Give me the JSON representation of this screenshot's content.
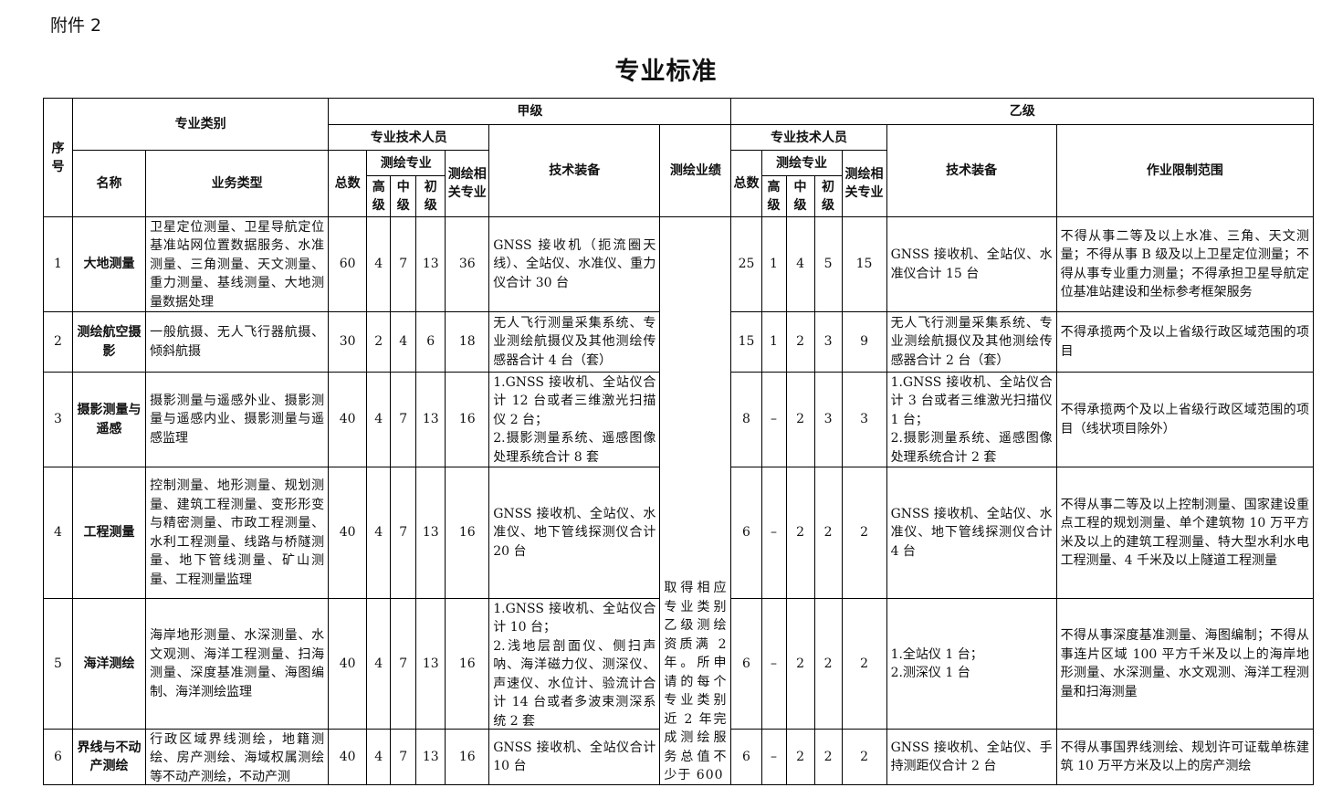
{
  "attachment": "附件 2",
  "title": "专业标准",
  "headers": {
    "seq": "序号",
    "category": "专业类别",
    "name": "名称",
    "business": "业务类型",
    "gradeA": "甲级",
    "gradeB": "乙级",
    "staff": "专业技术人员",
    "total": "总数",
    "surveying": "测绘专业",
    "senior": "高级",
    "middle": "中级",
    "junior": "初级",
    "related": "测绘相关专业",
    "equipment": "技术装备",
    "performance": "测绘业绩",
    "scope": "作业限制范围"
  },
  "performance": "取得相应专业类别乙级测绘资质满 2 年。所申请的每个专业类别近 2 年完成测绘服务总值不少于 600",
  "rows": [
    {
      "seq": "1",
      "name": "大地测量",
      "business": "卫星定位测量、卫星导航定位基准站网位置数据服务、水准测量、三角测量、天文测量、重力测量、基线测量、大地测量数据处理",
      "a_total": "60",
      "a_high": "4",
      "a_mid": "7",
      "a_low": "13",
      "a_rel": "36",
      "a_equip": "GNSS 接收机（扼流圈天线）、全站仪、水准仪、重力仪合计 30 台",
      "b_total": "25",
      "b_high": "1",
      "b_mid": "4",
      "b_low": "5",
      "b_rel": "15",
      "b_equip": "GNSS 接收机、全站仪、水准仪合计 15 台",
      "scope": "不得从事二等及以上水准、三角、天文测量；不得从事 B 级及以上卫星定位测量；不得从事专业重力测量；不得承担卫星导航定位基准站建设和坐标参考框架服务"
    },
    {
      "seq": "2",
      "name": "测绘航空摄影",
      "business": "一般航摄、无人飞行器航摄、倾斜航摄",
      "a_total": "30",
      "a_high": "2",
      "a_mid": "4",
      "a_low": "6",
      "a_rel": "18",
      "a_equip": "无人飞行测量采集系统、专业测绘航摄仪及其他测绘传感器合计 4 台（套）",
      "b_total": "15",
      "b_high": "1",
      "b_mid": "2",
      "b_low": "3",
      "b_rel": "9",
      "b_equip": "无人飞行测量采集系统、专业测绘航摄仪及其他测绘传感器合计 2 台（套）",
      "scope": "不得承揽两个及以上省级行政区域范围的项目"
    },
    {
      "seq": "3",
      "name": "摄影测量与遥感",
      "business": "摄影测量与遥感外业、摄影测量与遥感内业、摄影测量与遥感监理",
      "a_total": "40",
      "a_high": "4",
      "a_mid": "7",
      "a_low": "13",
      "a_rel": "16",
      "a_equip": "1.GNSS 接收机、全站仪合计 12 台或者三维激光扫描仪 2 台；\n2.摄影测量系统、遥感图像处理系统合计 8 套",
      "b_total": "8",
      "b_high": "–",
      "b_mid": "2",
      "b_low": "3",
      "b_rel": "3",
      "b_equip": "1.GNSS 接收机、全站仪合计 3 台或者三维激光扫描仪 1 台；\n2.摄影测量系统、遥感图像处理系统合计 2 套",
      "scope": "不得承揽两个及以上省级行政区域范围的项目（线状项目除外）"
    },
    {
      "seq": "4",
      "name": "工程测量",
      "business": "控制测量、地形测量、规划测量、建筑工程测量、变形形变与精密测量、市政工程测量、水利工程测量、线路与桥隧测量、地下管线测量、矿山测量、工程测量监理",
      "a_total": "40",
      "a_high": "4",
      "a_mid": "7",
      "a_low": "13",
      "a_rel": "16",
      "a_equip": "GNSS 接收机、全站仪、水准仪、地下管线探测仪合计 20 台",
      "b_total": "6",
      "b_high": "–",
      "b_mid": "2",
      "b_low": "2",
      "b_rel": "2",
      "b_equip": "GNSS 接收机、全站仪、水准仪、地下管线探测仪合计 4 台",
      "scope": "不得从事二等及以上控制测量、国家建设重点工程的规划测量、单个建筑物 10 万平方米及以上的建筑工程测量、特大型水利水电工程测量、4 千米及以上隧道工程测量"
    },
    {
      "seq": "5",
      "name": "海洋测绘",
      "business": "海岸地形测量、水深测量、水文观测、海洋工程测量、扫海测量、深度基准测量、海图编制、海洋测绘监理",
      "a_total": "40",
      "a_high": "4",
      "a_mid": "7",
      "a_low": "13",
      "a_rel": "16",
      "a_equip": "1.GNSS 接收机、全站仪合计 10 台；\n2.浅地层剖面仪、侧扫声呐、海洋磁力仪、测深仪、声速仪、水位计、验流计合计 14 台或者多波束测深系统 2 套",
      "b_total": "6",
      "b_high": "–",
      "b_mid": "2",
      "b_low": "2",
      "b_rel": "2",
      "b_equip": "1.全站仪 1 台；\n2.测深仪 1 台",
      "scope": "不得从事深度基准测量、海图编制；不得从事连片区域 100 平方千米及以上的海岸地形测量、水深测量、水文观测、海洋工程测量和扫海测量"
    },
    {
      "seq": "6",
      "name": "界线与不动产测绘",
      "business": "行政区域界线测绘，地籍测绘、房产测绘、海域权属测绘等不动产测绘，不动产测",
      "a_total": "40",
      "a_high": "4",
      "a_mid": "7",
      "a_low": "13",
      "a_rel": "16",
      "a_equip": "GNSS 接收机、全站仪合计 10 台",
      "b_total": "6",
      "b_high": "–",
      "b_mid": "2",
      "b_low": "2",
      "b_rel": "2",
      "b_equip": "GNSS 接收机、全站仪、手持测距仪合计 2 台",
      "scope": "不得从事国界线测绘、规划许可证载单栋建筑 10 万平方米及以上的房产测绘"
    }
  ]
}
